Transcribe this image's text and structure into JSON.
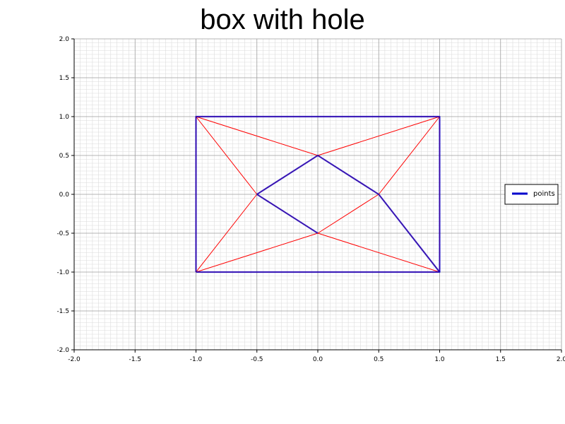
{
  "chart_data": {
    "type": "line",
    "title": "box with hole",
    "xlabel": "",
    "ylabel": "",
    "xlim": [
      -2.0,
      2.0
    ],
    "ylim": [
      -2.0,
      2.0
    ],
    "grid": true,
    "x_ticks": [
      "-2.0",
      "-1.5",
      "-1.0",
      "-0.5",
      "0.0",
      "0.5",
      "1.0",
      "1.5",
      "2.0"
    ],
    "y_ticks": [
      "2.0",
      "1.5",
      "1.0",
      "0.5",
      "0.0",
      "-0.5",
      "-1.0",
      "-1.5",
      "-2.0"
    ],
    "legend": {
      "placement": "right",
      "entries": [
        "points"
      ]
    },
    "series": [
      {
        "name": "points",
        "color": "#0000cc",
        "segments": [
          [
            [
              -1.0,
              -1.0
            ],
            [
              1.0,
              -1.0
            ],
            [
              1.0,
              1.0
            ],
            [
              -1.0,
              1.0
            ],
            [
              -1.0,
              -1.0
            ]
          ],
          [
            [
              -0.5,
              0.0
            ],
            [
              0.0,
              0.5
            ],
            [
              0.5,
              0.0
            ],
            [
              1.0,
              -1.0
            ]
          ],
          [
            [
              -0.5,
              0.0
            ],
            [
              0.0,
              -0.5
            ]
          ]
        ]
      }
    ],
    "triangulation": {
      "color": "#ff0000",
      "edges": [
        [
          [
            -1.0,
            -1.0
          ],
          [
            1.0,
            -1.0
          ]
        ],
        [
          [
            1.0,
            -1.0
          ],
          [
            1.0,
            1.0
          ]
        ],
        [
          [
            1.0,
            1.0
          ],
          [
            -1.0,
            1.0
          ]
        ],
        [
          [
            -1.0,
            1.0
          ],
          [
            -1.0,
            -1.0
          ]
        ],
        [
          [
            -1.0,
            1.0
          ],
          [
            0.0,
            0.5
          ]
        ],
        [
          [
            1.0,
            1.0
          ],
          [
            0.0,
            0.5
          ]
        ],
        [
          [
            -1.0,
            1.0
          ],
          [
            -0.5,
            0.0
          ]
        ],
        [
          [
            1.0,
            1.0
          ],
          [
            0.5,
            0.0
          ]
        ],
        [
          [
            -1.0,
            -1.0
          ],
          [
            -0.5,
            0.0
          ]
        ],
        [
          [
            -1.0,
            -1.0
          ],
          [
            0.0,
            -0.5
          ]
        ],
        [
          [
            1.0,
            -1.0
          ],
          [
            0.0,
            -0.5
          ]
        ],
        [
          [
            1.0,
            -1.0
          ],
          [
            0.5,
            0.0
          ]
        ],
        [
          [
            -0.5,
            0.0
          ],
          [
            0.0,
            0.5
          ]
        ],
        [
          [
            0.0,
            0.5
          ],
          [
            0.5,
            0.0
          ]
        ],
        [
          [
            0.5,
            0.0
          ],
          [
            0.0,
            -0.5
          ]
        ],
        [
          [
            -0.5,
            0.0
          ],
          [
            0.0,
            -0.5
          ]
        ]
      ]
    }
  }
}
